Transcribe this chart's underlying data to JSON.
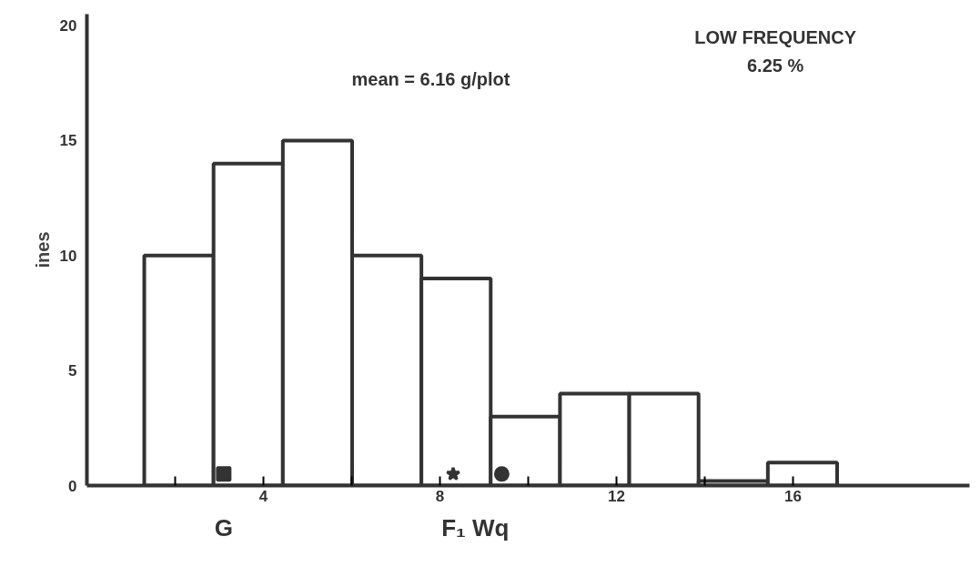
{
  "chart_data": {
    "type": "histogram",
    "ylabel": "ines",
    "bins": [
      1.3,
      2.87,
      4.44,
      6.01,
      7.58,
      9.15,
      10.72,
      12.29,
      13.86,
      15.43,
      17.0
    ],
    "values": [
      10,
      14,
      15,
      10,
      9,
      3,
      4,
      4,
      0.2,
      1
    ],
    "color": "#ffffff",
    "series": [
      {
        "type": "scatter",
        "marker": "square",
        "x": [
          3.1
        ],
        "values": [
          0.5
        ],
        "color": "#333333"
      },
      {
        "type": "scatter",
        "marker": "star",
        "x": [
          8.3
        ],
        "values": [
          0.5
        ],
        "color": "#333333"
      },
      {
        "type": "scatter",
        "marker": "circle",
        "x": [
          9.4
        ],
        "values": [
          0.5
        ],
        "color": "#333333"
      }
    ],
    "annotations": [
      "mean = 6.16 g/plot",
      "LOW FREQUENCY",
      "6.25 %",
      "G",
      "F₁ Wq"
    ],
    "xlim": [
      0,
      20
    ],
    "ylim": [
      0,
      20.5
    ],
    "xticks": [
      {
        "value": 2,
        "label": null
      },
      4,
      {
        "value": 6,
        "label": null
      },
      8,
      {
        "value": 10,
        "label": null
      },
      12,
      {
        "value": 14,
        "label": null
      },
      16
    ],
    "yticks": [
      0,
      5,
      10,
      15,
      20
    ],
    "grid": false
  }
}
